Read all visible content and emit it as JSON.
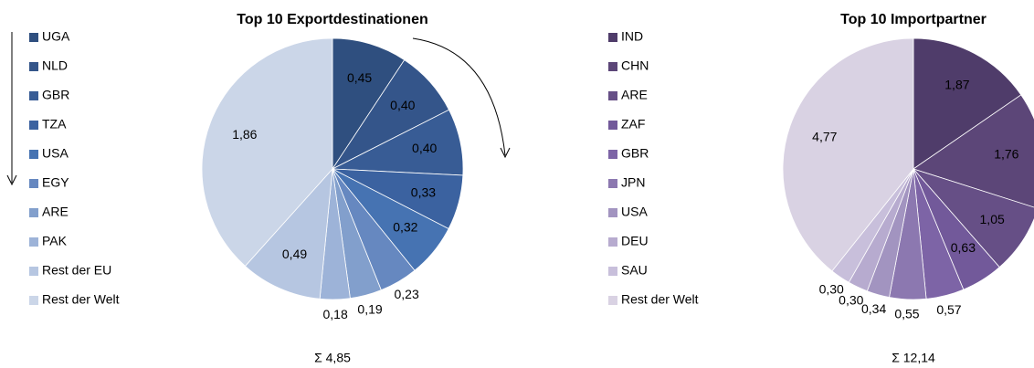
{
  "chart_data": [
    {
      "type": "pie",
      "title": "Top 10 Exportdestinationen",
      "categories": [
        "UGA",
        "NLD",
        "GBR",
        "TZA",
        "USA",
        "EGY",
        "ARE",
        "PAK",
        "Rest der EU",
        "Rest der Welt"
      ],
      "values": [
        0.45,
        0.4,
        0.4,
        0.33,
        0.32,
        0.23,
        0.19,
        0.18,
        0.49,
        1.86
      ],
      "value_labels": [
        "0,45",
        "0,40",
        "0,40",
        "0,33",
        "0,32",
        "0,23",
        "0,19",
        "0,18",
        "0,49",
        "1,86"
      ],
      "colors": [
        "#2f4f7f",
        "#34558a",
        "#385c95",
        "#3b62a0",
        "#4673b2",
        "#6688c0",
        "#829fcc",
        "#9db3d8",
        "#b6c6e1",
        "#cbd6e8"
      ],
      "annotation": "Σ 4,85"
    },
    {
      "type": "pie",
      "title": "Top 10 Importpartner",
      "categories": [
        "IND",
        "CHN",
        "ARE",
        "ZAF",
        "GBR",
        "JPN",
        "USA",
        "DEU",
        "SAU",
        "Rest der Welt"
      ],
      "values": [
        1.87,
        1.76,
        1.05,
        0.63,
        0.57,
        0.55,
        0.34,
        0.3,
        0.3,
        4.77
      ],
      "value_labels": [
        "1,87",
        "1,76",
        "1,05",
        "0,63",
        "0,57",
        "0,55",
        "0,34",
        "0,30",
        "0,30",
        "4,77"
      ],
      "colors": [
        "#4f3c6a",
        "#5c4678",
        "#664f86",
        "#72599a",
        "#7d64a6",
        "#8c78b0",
        "#a294c0",
        "#b7abcf",
        "#c8bfdb",
        "#d9d2e3"
      ],
      "annotation": "Σ 12,14"
    }
  ]
}
